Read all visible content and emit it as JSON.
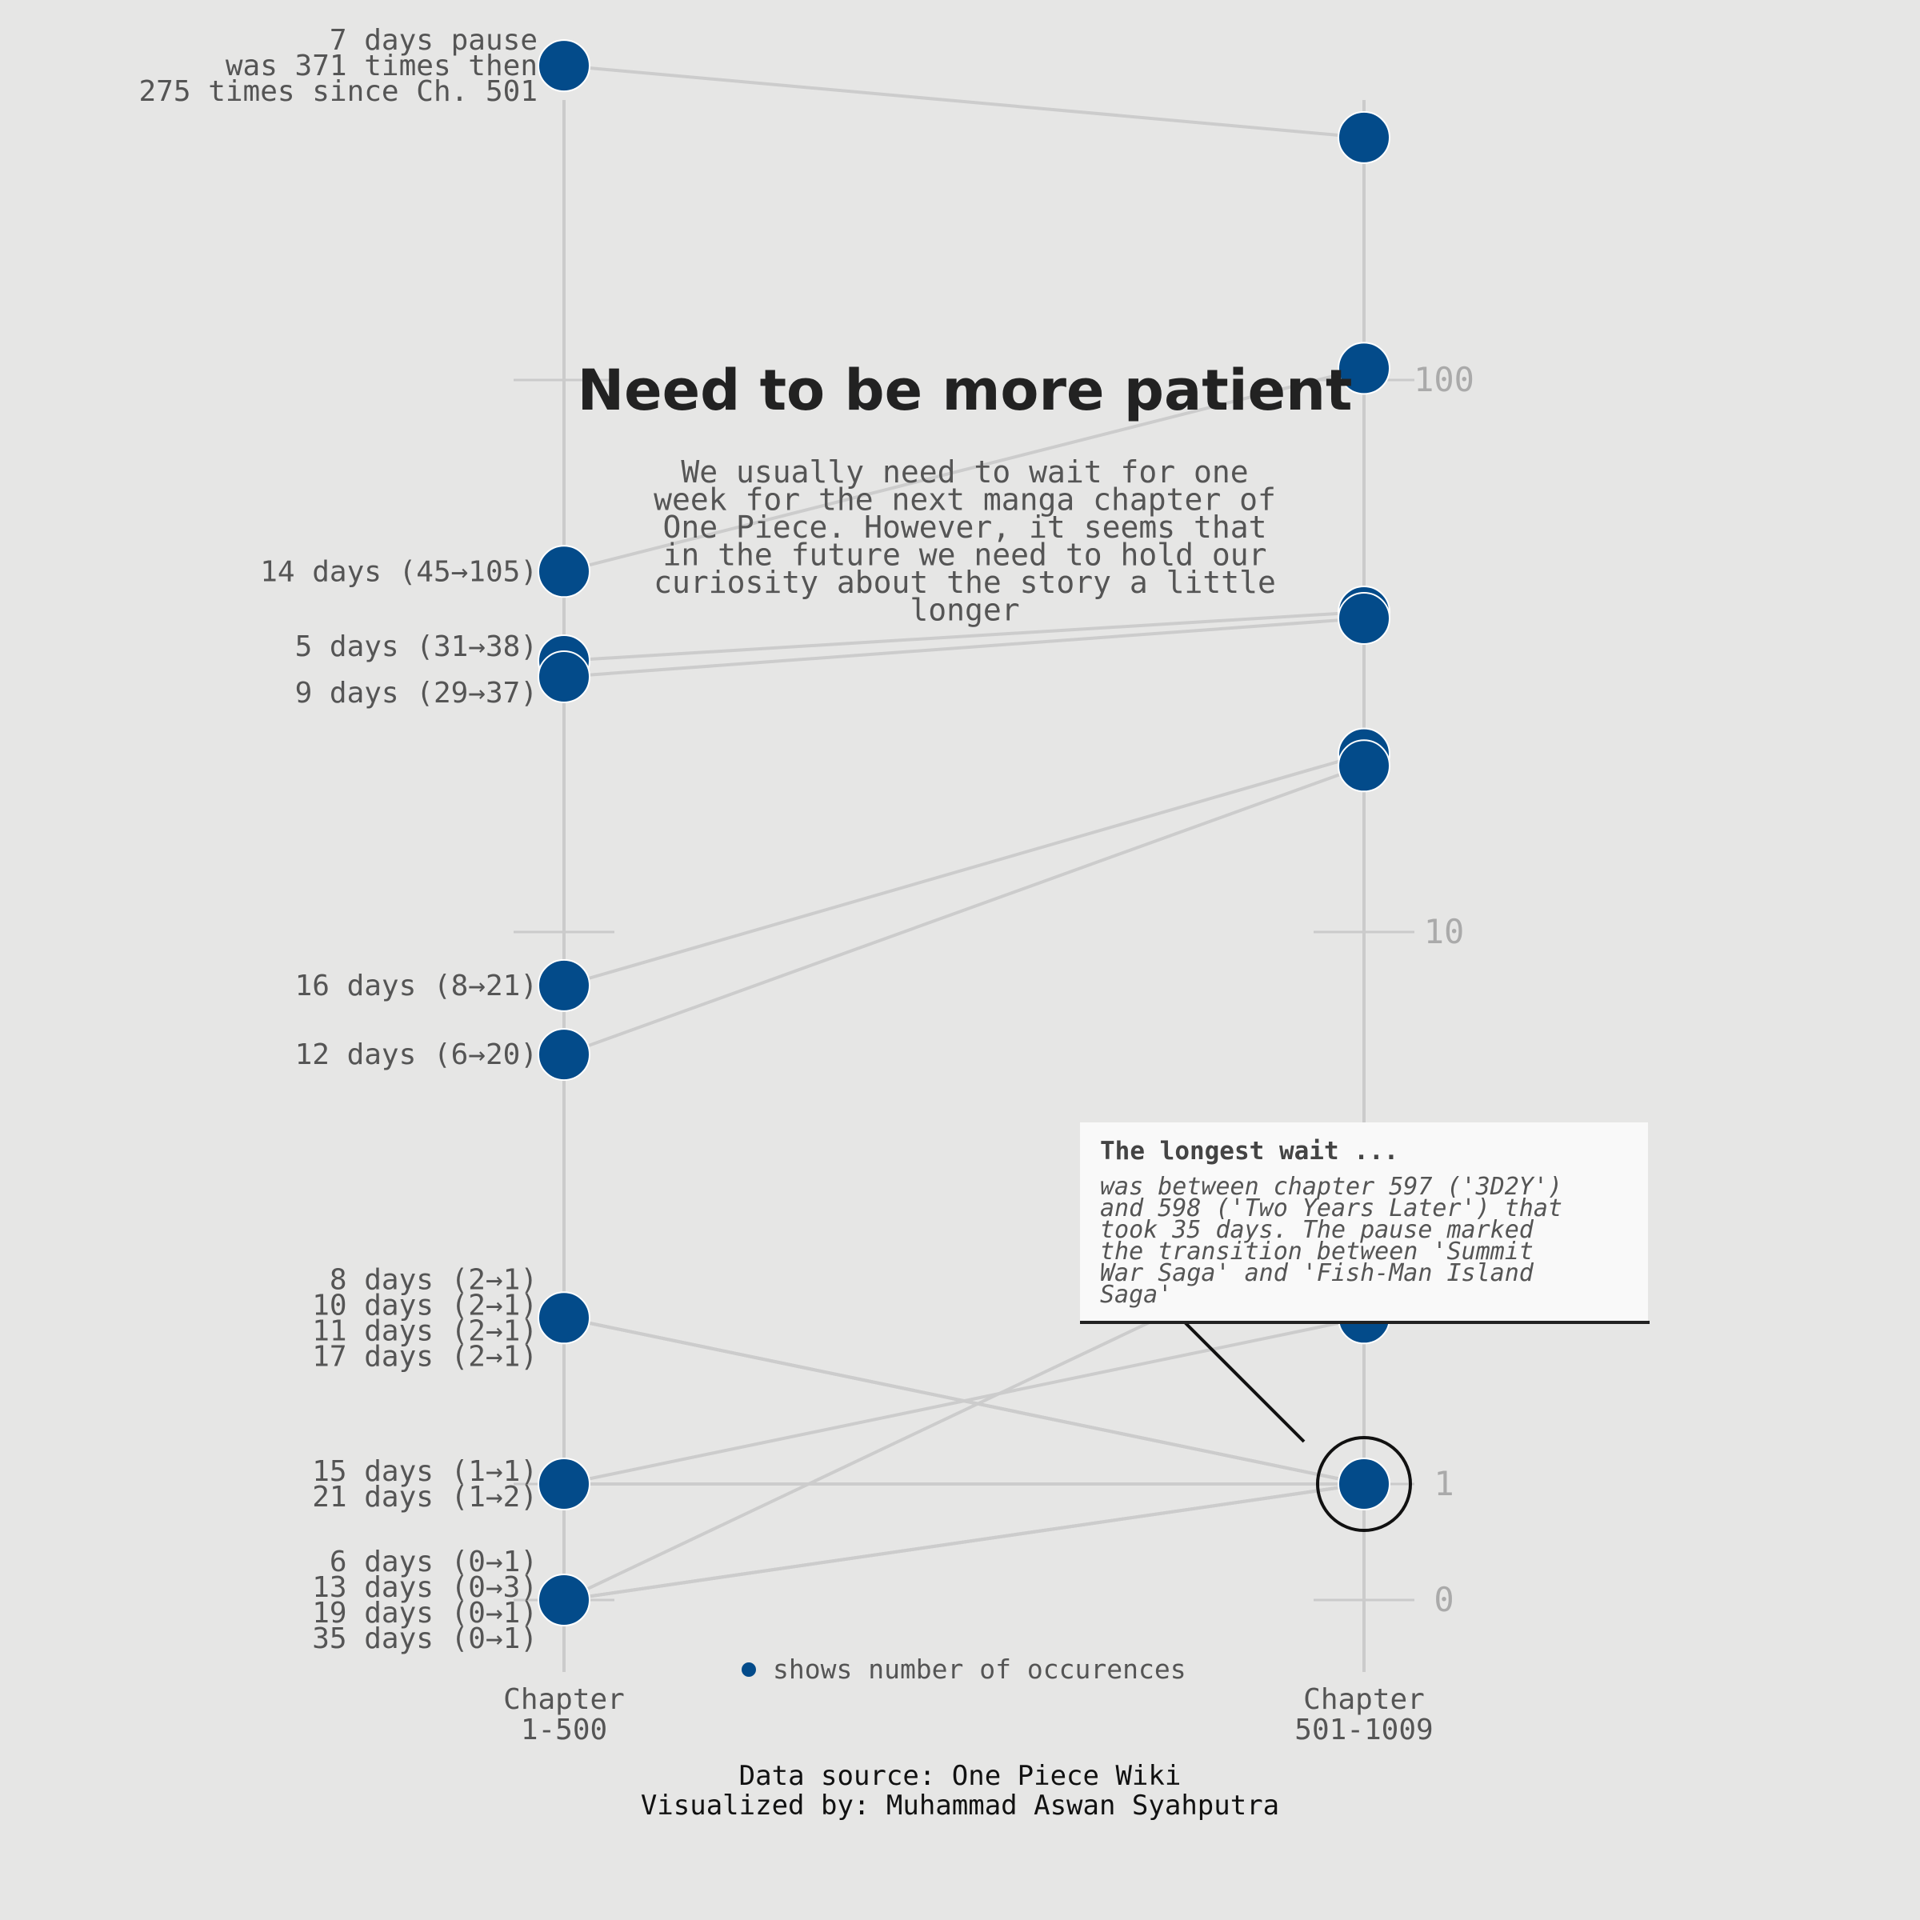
{
  "chart_data": {
    "type": "slope",
    "title": "Need to be more patient",
    "subtitle": [
      "We usually need to wait for one",
      "week for the next manga chapter of",
      "One Piece. However, it seems that",
      "in the future we need to hold our",
      "curiosity about the story a little",
      "longer"
    ],
    "scale": "symlog",
    "y_ticks": [
      "100",
      "10",
      "1",
      "0"
    ],
    "x_categories": [
      "Chapter\n1-500",
      "Chapter\n501-1009"
    ],
    "series": [
      {
        "days": 7,
        "before": 371,
        "after": 275
      },
      {
        "days": 14,
        "before": 45,
        "after": 105
      },
      {
        "days": 5,
        "before": 31,
        "after": 38
      },
      {
        "days": 9,
        "before": 29,
        "after": 37
      },
      {
        "days": 16,
        "before": 8,
        "after": 21
      },
      {
        "days": 12,
        "before": 6,
        "after": 20
      },
      {
        "days": 8,
        "before": 2,
        "after": 1
      },
      {
        "days": 10,
        "before": 2,
        "after": 1
      },
      {
        "days": 11,
        "before": 2,
        "after": 1
      },
      {
        "days": 17,
        "before": 2,
        "after": 1
      },
      {
        "days": 15,
        "before": 1,
        "after": 1
      },
      {
        "days": 21,
        "before": 1,
        "after": 2
      },
      {
        "days": 6,
        "before": 0,
        "after": 1
      },
      {
        "days": 13,
        "before": 0,
        "after": 3
      },
      {
        "days": 19,
        "before": 0,
        "after": 1
      },
      {
        "days": 35,
        "before": 0,
        "after": 1
      }
    ],
    "left_labels": [
      {
        "value": 371,
        "lines": [
          "7 days pause",
          "was 371 times then",
          "275 times since Ch. 501"
        ]
      },
      {
        "value": 45,
        "lines": [
          "14 days (45→105)"
        ]
      },
      {
        "value": 31,
        "lines": [
          "5 days (31→38)"
        ],
        "offset": -18
      },
      {
        "value": 29,
        "lines": [
          "9 days (29→37)"
        ],
        "offset": 20
      },
      {
        "value": 8,
        "lines": [
          "16 days (8→21)"
        ]
      },
      {
        "value": 6,
        "lines": [
          "12 days (6→20)"
        ]
      },
      {
        "value": 2,
        "lines": [
          "8 days (2→1)",
          "10 days (2→1)",
          "11 days (2→1)",
          "17 days (2→1)"
        ]
      },
      {
        "value": 1,
        "lines": [
          "15 days (1→1)",
          "21 days (1→2)"
        ]
      },
      {
        "value": 0,
        "lines": [
          "6 days (0→1)",
          "13 days (0→3)",
          "19 days (0→1)",
          "35 days (0→1)"
        ]
      }
    ],
    "legend": "shows number of occurences",
    "annotation": {
      "title": "The longest wait ...",
      "lines": [
        "was between chapter 597 ('3D2Y')",
        "and 598 ('Two Years Later') that",
        "took 35 days. The pause marked",
        "the transition between 'Summit",
        "War Saga' and 'Fish-Man Island",
        "Saga'"
      ],
      "target_value": 1
    },
    "colors": {
      "dot": "#034b8a",
      "line": "#cccccc",
      "axis": "#cbcbcb",
      "text": "#555555",
      "title": "#222222",
      "tick": "#aaaaaa",
      "background": "#e6e6e5"
    }
  },
  "footer": {
    "source": "Data source: One Piece Wiki",
    "author": "Visualized by: Muhammad Aswan Syahputra"
  }
}
